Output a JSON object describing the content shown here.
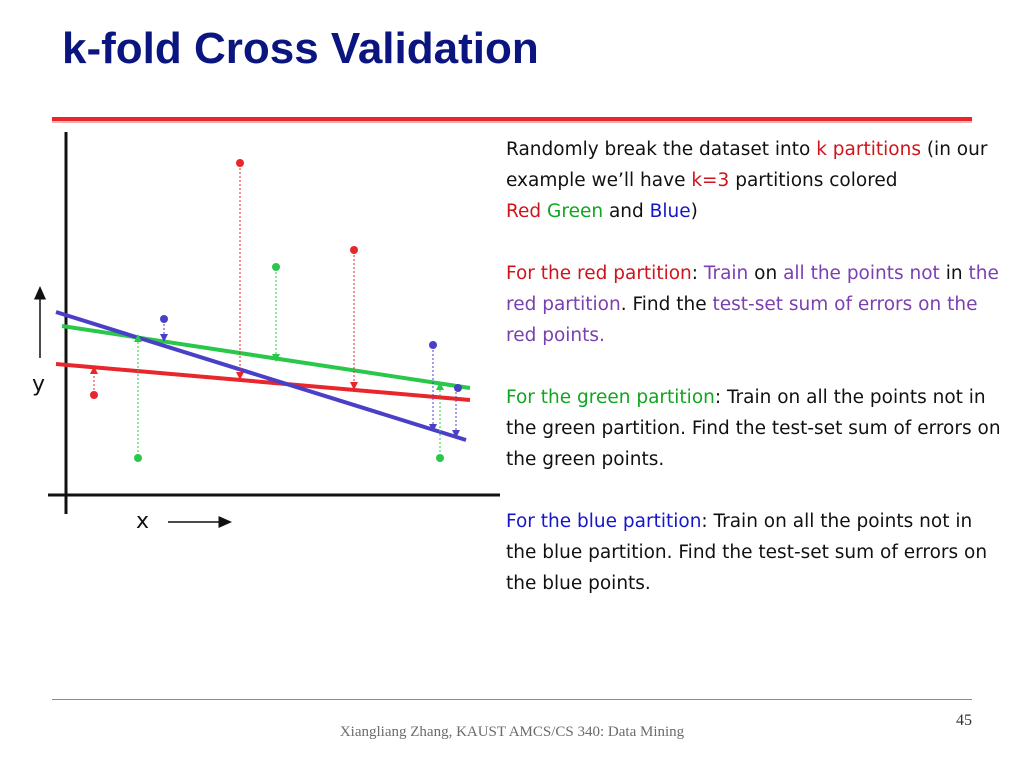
{
  "slide": {
    "title": "k-fold Cross Validation",
    "page_number": "45",
    "footer": "Xiangliang Zhang, KAUST AMCS/CS 340: Data Mining"
  },
  "figure": {
    "y_label": "y",
    "x_label": "x",
    "colors": {
      "red": "#e8262b",
      "green": "#2ac84a",
      "blue": "#4a40c8",
      "axis": "#111111"
    }
  },
  "content": {
    "p1": {
      "t1": "Randomly break the dataset into ",
      "t2": "k partitions",
      "t3": " (in our example we’ll have ",
      "t4": "k=3",
      "t5": " partitions colored ",
      "t6": "Red",
      "t7": " ",
      "t8": "Green",
      "t9": " and ",
      "t10": "Blue",
      "t11": ")"
    },
    "p2": {
      "t1": "For the red partition",
      "t2": ": ",
      "t3": "Train",
      "t4": " on ",
      "t5": "all the points not",
      "t6": " in ",
      "t7": "the red partition",
      "t8": ". Find the ",
      "t9": "test-set sum of errors on the red points."
    },
    "p3": {
      "t1": "For the green partition",
      "t2": ": Train on all the points not in the green partition. Find the test-set sum of errors on the green points."
    },
    "p4": {
      "t1": "For the blue partition",
      "t2": ": Train on all the points not in the blue partition. Find the test-set sum of errors on the blue points."
    }
  }
}
